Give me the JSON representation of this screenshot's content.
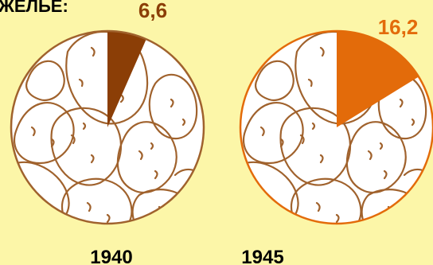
{
  "header_fragment": "ЖЕЛЬЕ:",
  "colors": {
    "background": "#fcf6a8",
    "outline": "#a0622d",
    "fill_1940": "#8b3e06",
    "fill_1945": "#e36b0a",
    "label_1940": "#8b3e06",
    "label_1945": "#e36b0a",
    "year_text": "#000000"
  },
  "chart_data": [
    {
      "type": "pie",
      "category": "1940",
      "value": 6.6,
      "value_label": "6,6",
      "max": 100,
      "start": "top",
      "direction": "clockwise",
      "background_icon": "potatoes-illustration"
    },
    {
      "type": "pie",
      "category": "1945",
      "value": 16.2,
      "value_label": "16,2",
      "max": 100,
      "start": "top",
      "direction": "clockwise",
      "background_icon": "potatoes-illustration"
    }
  ]
}
